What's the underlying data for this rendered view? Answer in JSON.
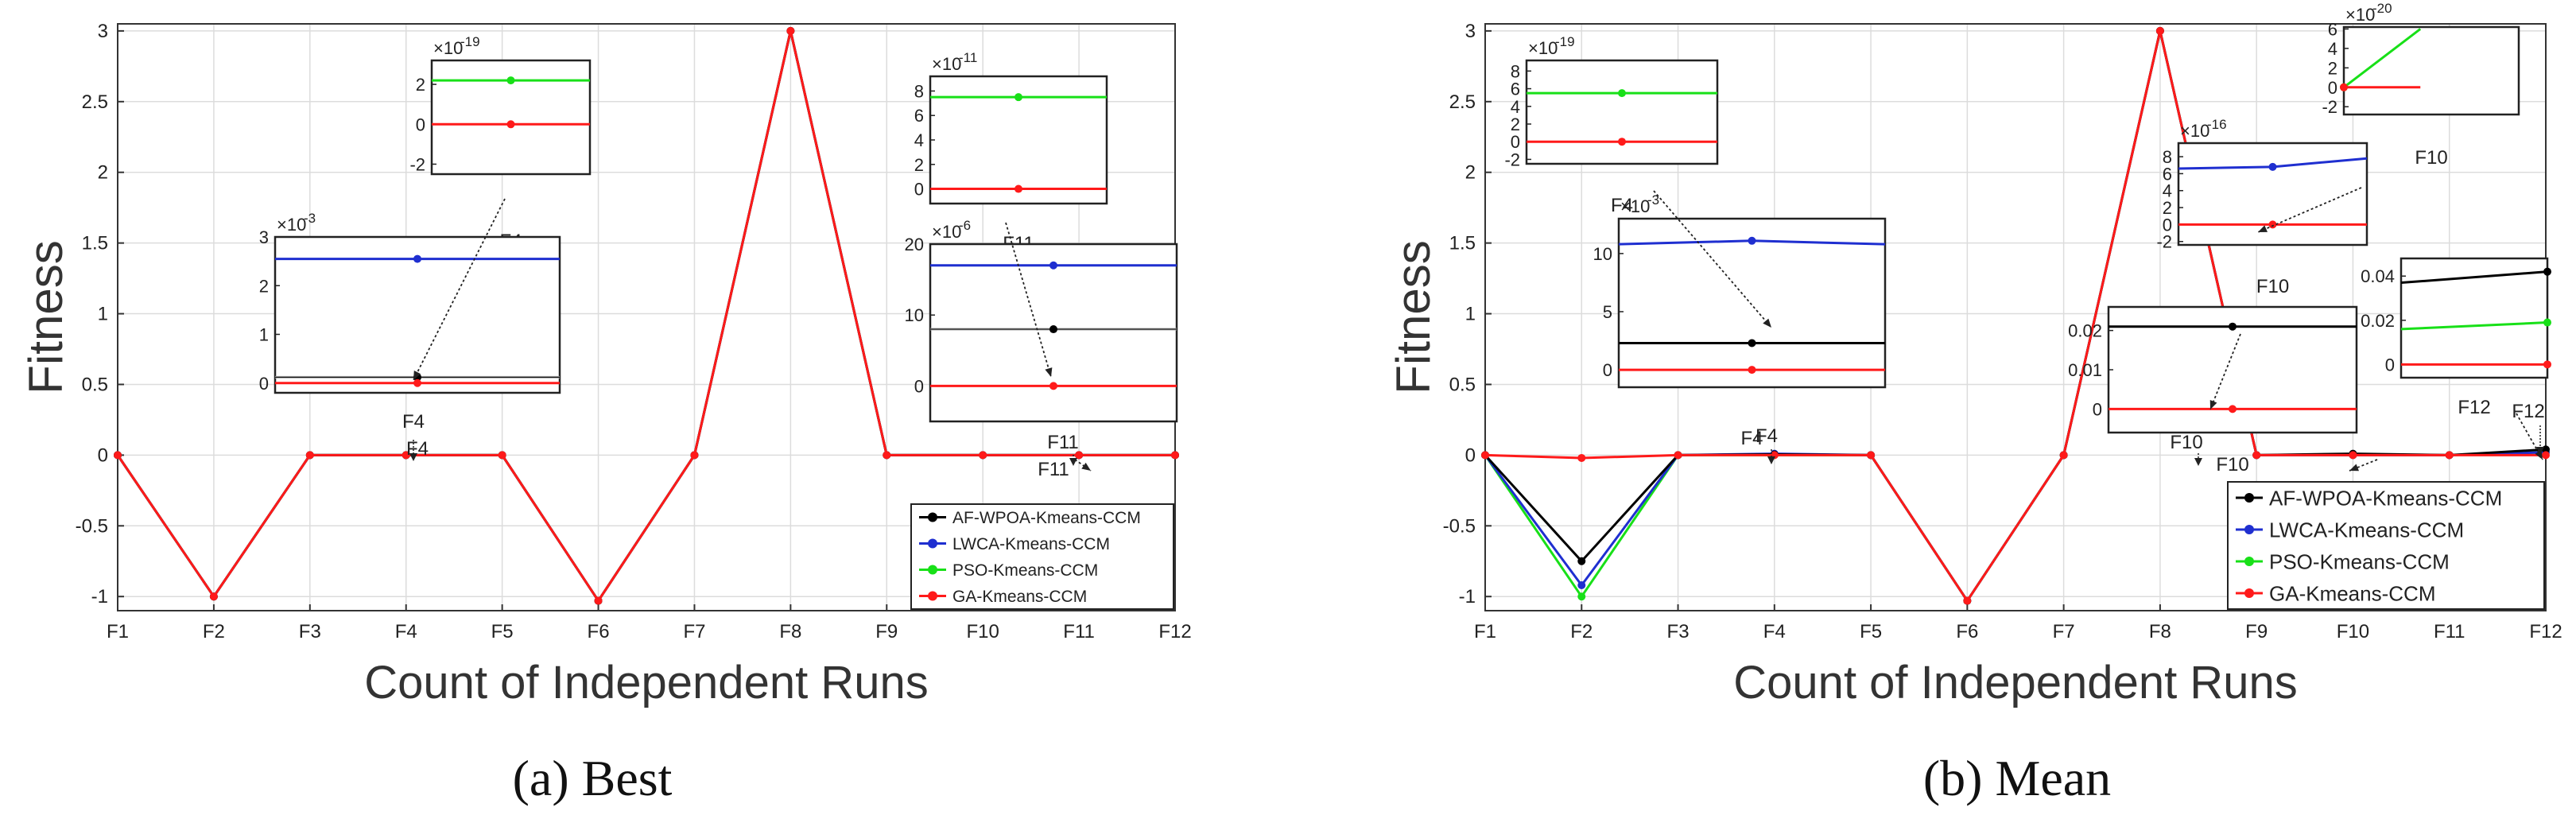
{
  "colors": {
    "af": "#000000",
    "lwca": "#1f2fd0",
    "pso": "#18e018",
    "ga": "#ff1a1a",
    "grid": "#dcdcdc",
    "inset_gray": "#a8a8a8"
  },
  "chart_data": [
    {
      "type": "line",
      "caption": "(a) Best",
      "xlabel": "Count of Independent Runs",
      "ylabel": "Fitness",
      "categories": [
        "F1",
        "F2",
        "F3",
        "F4",
        "F5",
        "F6",
        "F7",
        "F8",
        "F9",
        "F10",
        "F11",
        "F12"
      ],
      "ylim": [
        -1.1,
        3.05
      ],
      "yticks": [
        "-1",
        "-0.5",
        "0",
        "0.5",
        "1",
        "1.5",
        "2",
        "2.5",
        "3"
      ],
      "ytick_values": [
        -1,
        -0.5,
        0,
        0.5,
        1,
        1.5,
        2,
        2.5,
        3
      ],
      "legend_position": "bottom-right",
      "grid": true,
      "series": [
        {
          "name": "AF-WPOA-Kmeans-CCM",
          "key": "af",
          "values": [
            0,
            -1,
            0,
            0,
            0,
            -1.03,
            0,
            3,
            0,
            0,
            0,
            0
          ]
        },
        {
          "name": "LWCA-Kmeans-CCM",
          "key": "lwca",
          "values": [
            0,
            -1,
            0,
            0,
            0,
            -1.03,
            0,
            3,
            0,
            0,
            0,
            0
          ]
        },
        {
          "name": "PSO-Kmeans-CCM",
          "key": "pso",
          "values": [
            0,
            -1,
            0,
            0,
            0,
            -1.03,
            0,
            3,
            0,
            0,
            0,
            0
          ]
        },
        {
          "name": "GA-Kmeans-CCM",
          "key": "ga",
          "values": [
            0,
            -1,
            0,
            0,
            0,
            -1.03,
            0,
            3,
            0,
            0,
            0,
            0
          ]
        }
      ],
      "insets": [
        {
          "exponent_base": "×10",
          "exponent": "-19",
          "label": "F4",
          "y_ticks": [
            "2",
            "0",
            "-2"
          ],
          "lines": [
            {
              "key": "pso",
              "values": [
                2.2,
                2.2,
                2.2
              ]
            },
            {
              "key": "ga",
              "values": [
                0,
                0,
                0
              ]
            }
          ]
        },
        {
          "exponent_base": "×10",
          "exponent": "-3",
          "label": "F4",
          "y_ticks": [
            "3",
            "2",
            "1",
            "0"
          ],
          "lines": [
            {
              "key": "lwca",
              "values": [
                2.55,
                2.55,
                2.55
              ]
            },
            {
              "key": "af",
              "values": [
                0.12,
                0.12,
                0.12
              ]
            },
            {
              "key": "ga",
              "values": [
                0,
                0,
                0
              ]
            }
          ]
        },
        {
          "exponent_base": "×10",
          "exponent": "-11",
          "label": "F11",
          "y_ticks": [
            "8",
            "6",
            "4",
            "2",
            "0"
          ],
          "lines": [
            {
              "key": "pso",
              "values": [
                7.5,
                7.5,
                7.5
              ]
            },
            {
              "key": "ga",
              "values": [
                0,
                0,
                0
              ]
            }
          ]
        },
        {
          "exponent_base": "×10",
          "exponent": "-6",
          "label": "F11",
          "y_ticks": [
            "20",
            "10",
            "0"
          ],
          "lines": [
            {
              "key": "lwca",
              "values": [
                17,
                17,
                17
              ]
            },
            {
              "key": "af",
              "values": [
                8,
                8,
                8
              ]
            },
            {
              "key": "ga",
              "values": [
                0,
                0,
                0
              ]
            }
          ]
        }
      ],
      "callouts": [
        "F4",
        "F11"
      ]
    },
    {
      "type": "line",
      "caption": "(b) Mean",
      "xlabel": "Count of Independent Runs",
      "ylabel": "Fitness",
      "categories": [
        "F1",
        "F2",
        "F3",
        "F4",
        "F5",
        "F6",
        "F7",
        "F8",
        "F9",
        "F10",
        "F11",
        "F12"
      ],
      "ylim": [
        -1.1,
        3.05
      ],
      "yticks": [
        "-1",
        "-0.5",
        "0",
        "0.5",
        "1",
        "1.5",
        "2",
        "2.5",
        "3"
      ],
      "ytick_values": [
        -1,
        -0.5,
        0,
        0.5,
        1,
        1.5,
        2,
        2.5,
        3
      ],
      "legend_position": "bottom-right",
      "grid": true,
      "series": [
        {
          "name": "AF-WPOA-Kmeans-CCM",
          "key": "af",
          "values": [
            0,
            -0.75,
            0,
            0.005,
            0,
            -1.03,
            0,
            3,
            0,
            0.01,
            0,
            0.04
          ]
        },
        {
          "name": "LWCA-Kmeans-CCM",
          "key": "lwca",
          "values": [
            0,
            -0.92,
            0,
            0.01,
            0,
            -1.03,
            0,
            3,
            0,
            0,
            0,
            0.02
          ]
        },
        {
          "name": "PSO-Kmeans-CCM",
          "key": "pso",
          "values": [
            0,
            -1,
            0,
            0,
            0,
            -1.03,
            0,
            3,
            0,
            0,
            0,
            0.02
          ]
        },
        {
          "name": "GA-Kmeans-CCM",
          "key": "ga",
          "values": [
            0,
            -0.02,
            0,
            0,
            0,
            -1.03,
            0,
            3,
            0,
            0,
            0,
            0
          ]
        }
      ],
      "insets": [
        {
          "exponent_base": "×10",
          "exponent": "-19",
          "label": "F4",
          "y_ticks": [
            "8",
            "6",
            "4",
            "2",
            "0",
            "-2"
          ],
          "lines": [
            {
              "key": "pso",
              "values": [
                5.5,
                5.5,
                5.5
              ]
            },
            {
              "key": "ga",
              "values": [
                0,
                0,
                0
              ]
            }
          ]
        },
        {
          "exponent_base": "×10",
          "exponent": "-3",
          "label": "F4",
          "y_ticks": [
            "10",
            "5",
            "0"
          ],
          "lines": [
            {
              "key": "lwca",
              "values": [
                10.8,
                11.1,
                10.8
              ]
            },
            {
              "key": "af",
              "values": [
                2.3,
                2.3,
                2.3
              ]
            },
            {
              "key": "ga",
              "values": [
                0,
                0,
                0
              ]
            }
          ]
        },
        {
          "exponent_base": "×10",
          "exponent": "-20",
          "label": "F10",
          "y_ticks": [
            "6",
            "4",
            "2",
            "0",
            "-2"
          ],
          "lines": [
            {
              "key": "pso",
              "values": [
                0,
                6
              ]
            },
            {
              "key": "ga",
              "values": [
                0,
                0
              ]
            }
          ]
        },
        {
          "exponent_base": "×10",
          "exponent": "-16",
          "label": "F10",
          "y_ticks": [
            "8",
            "6",
            "4",
            "2",
            "0",
            "-2"
          ],
          "lines": [
            {
              "key": "lwca",
              "values": [
                6.6,
                6.8,
                7.8
              ]
            },
            {
              "key": "ga",
              "values": [
                0,
                0,
                0
              ]
            }
          ]
        },
        {
          "exponent_base": "",
          "exponent": "",
          "label": "F12",
          "y_ticks": [
            "0.04",
            "0.02",
            "0"
          ],
          "lines": [
            {
              "key": "af",
              "values": [
                0.037,
                0.042
              ]
            },
            {
              "key": "pso",
              "values": [
                0.016,
                0.019
              ]
            },
            {
              "key": "ga",
              "values": [
                0,
                0
              ]
            }
          ]
        },
        {
          "exponent_base": "",
          "exponent": "",
          "label": "F10",
          "y_ticks": [
            "0.02",
            "0.01",
            "0"
          ],
          "lines": [
            {
              "key": "af",
              "values": [
                0.021,
                0.021,
                0.021
              ]
            },
            {
              "key": "ga",
              "values": [
                0,
                0,
                0
              ]
            }
          ]
        }
      ],
      "callouts": [
        "F4",
        "F10",
        "F12"
      ]
    }
  ]
}
